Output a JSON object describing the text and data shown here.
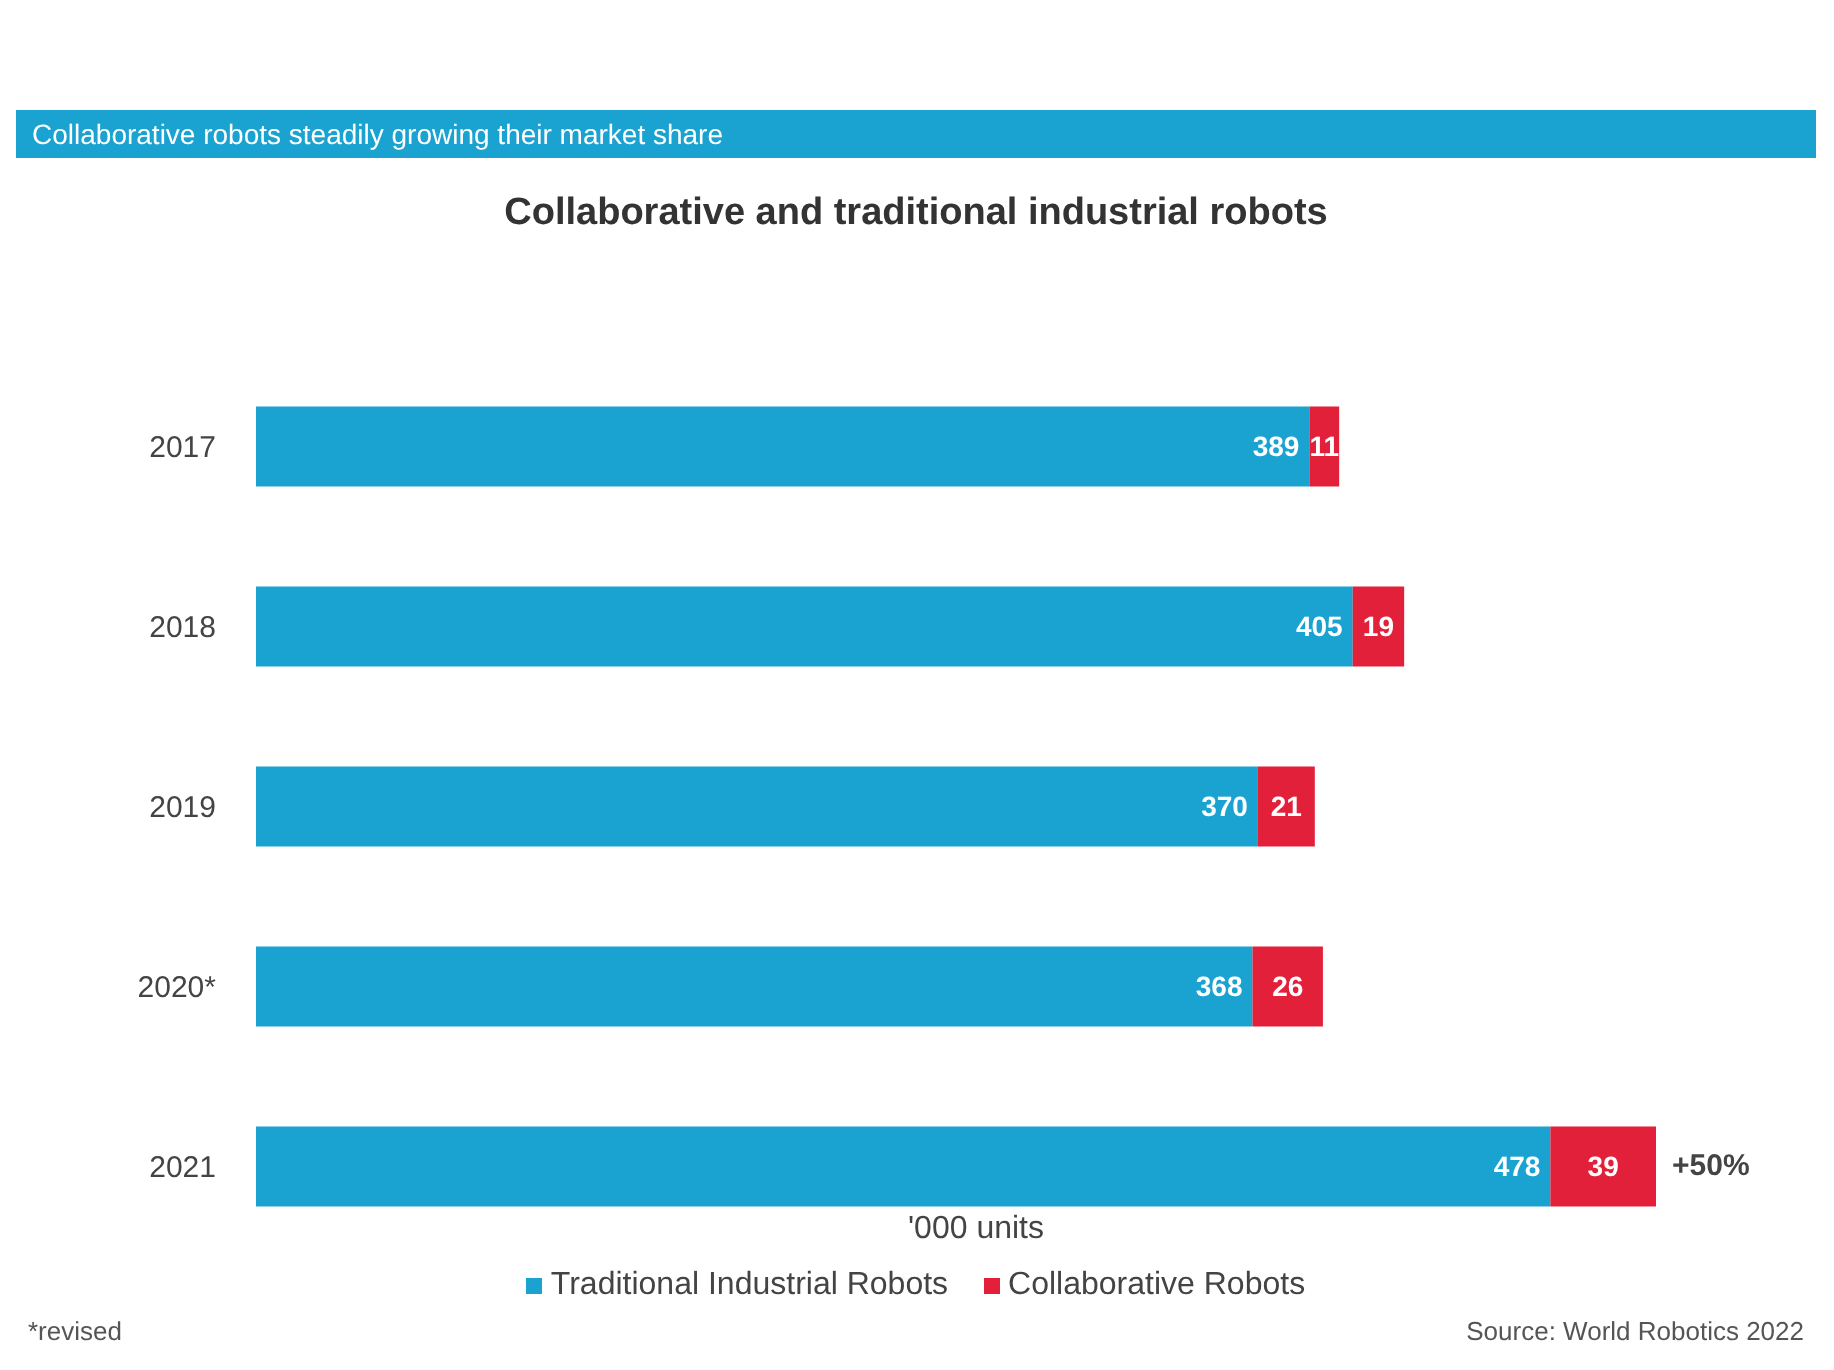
{
  "chart_data": {
    "type": "bar",
    "orientation": "horizontal",
    "stacked": true,
    "title": "Collaborative and traditional industrial robots",
    "subtitle": "Collaborative robots steadily growing their market share",
    "xlabel": "'000 units",
    "categories": [
      "2017",
      "2018",
      "2019",
      "2020*",
      "2021"
    ],
    "series": [
      {
        "name": "Traditional Industrial Robots",
        "color": "#1aa3d1",
        "values": [
          389,
          405,
          370,
          368,
          478
        ]
      },
      {
        "name": "Collaborative Robots",
        "color": "#e3203a",
        "values": [
          11,
          19,
          21,
          26,
          39
        ]
      }
    ],
    "data_labels": true,
    "legend": "bottom",
    "annotations": [
      {
        "text": "+50%",
        "x": 517,
        "y": "2021"
      },
      "*revised",
      "Source: World Robotics 2022"
    ]
  }
}
